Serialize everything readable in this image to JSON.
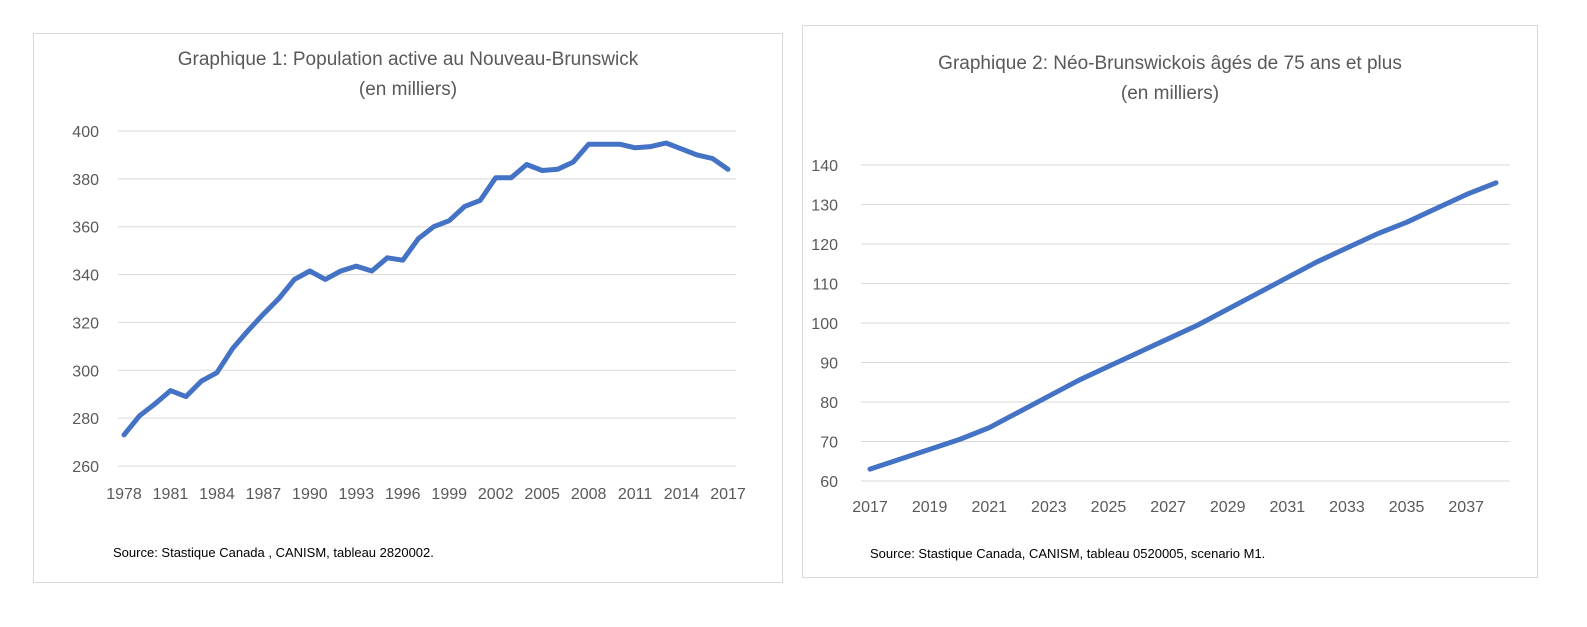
{
  "chart_data": [
    {
      "type": "line",
      "title": "Graphique 1: Population active au Nouveau-Brunswick",
      "subtitle": "(en milliers)",
      "x": [
        1978,
        1979,
        1980,
        1981,
        1982,
        1983,
        1984,
        1985,
        1986,
        1987,
        1988,
        1989,
        1990,
        1991,
        1992,
        1993,
        1994,
        1995,
        1996,
        1997,
        1998,
        1999,
        2000,
        2001,
        2002,
        2003,
        2004,
        2005,
        2006,
        2007,
        2008,
        2009,
        2010,
        2011,
        2012,
        2013,
        2014,
        2015,
        2016,
        2017
      ],
      "series": [
        {
          "values": [
            273,
            281,
            286,
            291.5,
            289,
            295.5,
            299,
            309,
            316.5,
            323.5,
            330,
            338,
            341.5,
            338,
            341.5,
            343.5,
            341.5,
            347,
            346,
            355,
            360,
            362.5,
            368.5,
            371,
            380.5,
            380.5,
            386,
            383.5,
            384,
            387,
            394.5,
            394.5,
            394.5,
            393,
            393.5,
            395,
            392.5,
            390,
            388.5,
            384
          ]
        }
      ],
      "x_tick_labels": [
        "1978",
        "1981",
        "1984",
        "1987",
        "1990",
        "1993",
        "1996",
        "1999",
        "2002",
        "2005",
        "2008",
        "2011",
        "2014",
        "2017"
      ],
      "y_tick_labels": [
        "260",
        "280",
        "300",
        "320",
        "340",
        "360",
        "380",
        "400"
      ],
      "ylim": [
        260,
        400
      ],
      "grid": true,
      "color": "#4472c4",
      "source": "Source: Stastique Canada , CANISM, tableau 2820002."
    },
    {
      "type": "line",
      "title": "Graphique 2: Néo-Brunswickois âgés de 75 ans et plus",
      "subtitle": "(en milliers)",
      "x": [
        2017,
        2018,
        2019,
        2020,
        2021,
        2022,
        2023,
        2024,
        2025,
        2026,
        2027,
        2028,
        2029,
        2030,
        2031,
        2032,
        2033,
        2034,
        2035,
        2036,
        2037,
        2038
      ],
      "series": [
        {
          "values": [
            63,
            65.5,
            68,
            70.5,
            73.5,
            77.5,
            81.5,
            85.5,
            89,
            92.5,
            96,
            99.5,
            103.5,
            107.5,
            111.5,
            115.5,
            119,
            122.5,
            125.5,
            129,
            132.5,
            135.5
          ]
        }
      ],
      "x_tick_labels": [
        "2017",
        "2019",
        "2021",
        "2023",
        "2025",
        "2027",
        "2029",
        "2031",
        "2033",
        "2035",
        "2037"
      ],
      "y_tick_labels": [
        "60",
        "70",
        "80",
        "90",
        "100",
        "110",
        "120",
        "130",
        "140"
      ],
      "ylim": [
        60,
        140
      ],
      "grid": true,
      "color": "#4472c4",
      "source": "Source: Stastique Canada, CANISM, tableau 0520005, scenario M1."
    }
  ]
}
